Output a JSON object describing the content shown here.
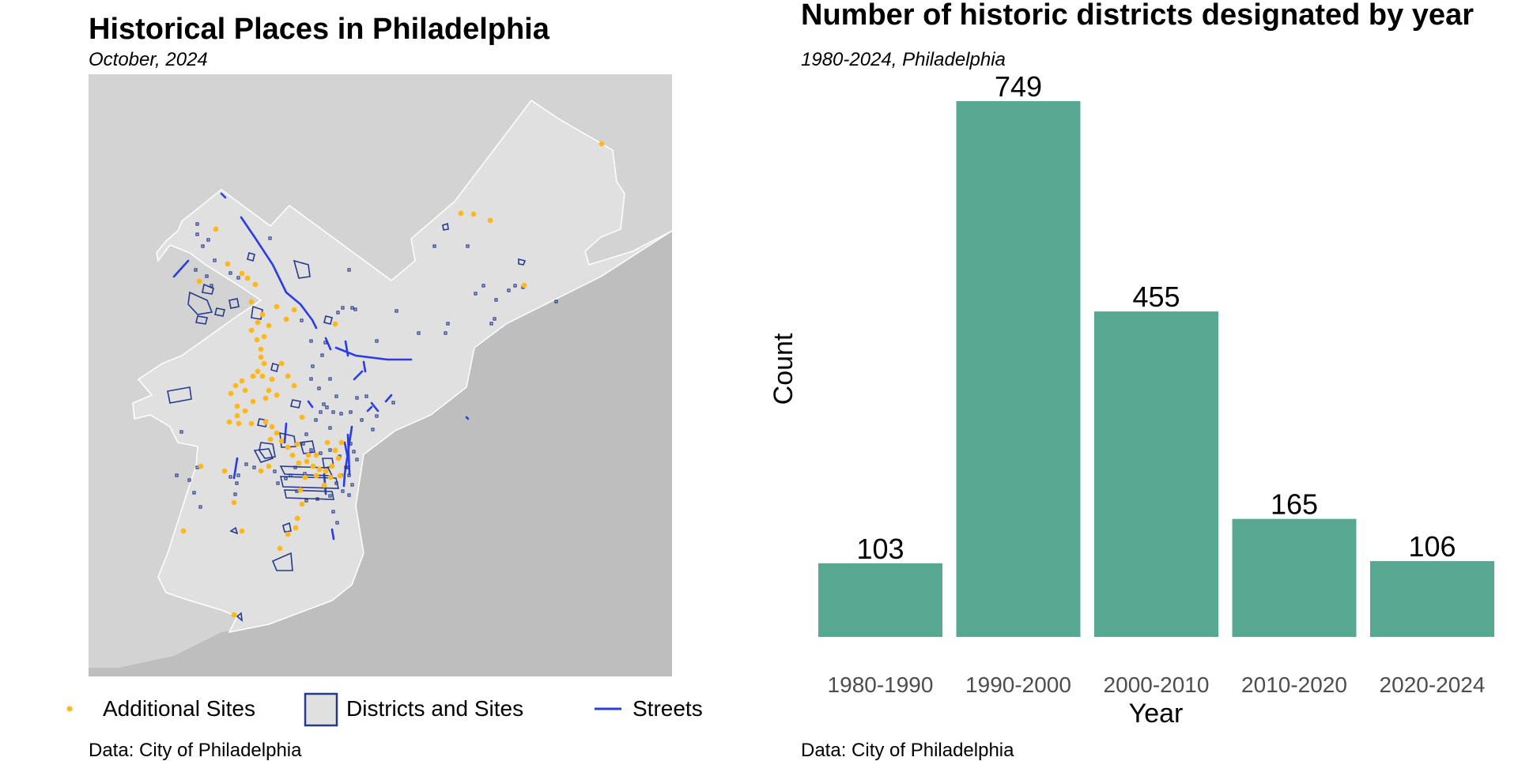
{
  "map": {
    "title": "Historical Places in Philadelphia",
    "subtitle": "October, 2024",
    "caption": "Data: City of Philadelphia",
    "colors": {
      "background": "#d3d3d3",
      "city": "#e0e0e0",
      "water": "#bebebe",
      "additional_sites": "#ffb81c",
      "districts": "#253a8c",
      "streets": "#2b3ce6"
    },
    "legend": [
      {
        "key": "additional",
        "label": "Additional Sites"
      },
      {
        "key": "districts",
        "label": "Districts and Sites"
      },
      {
        "key": "streets",
        "label": "Streets"
      }
    ]
  },
  "chart": {
    "title": "Number of historic districts designated by year",
    "subtitle": "1980-2024, Philadelphia",
    "caption": "Data: City of Philadelphia",
    "bar_color": "#58a891"
  },
  "chart_data": {
    "type": "bar",
    "title": "Number of historic districts designated by year",
    "subtitle": "1980-2024, Philadelphia",
    "xlabel": "Year",
    "ylabel": "Count",
    "categories": [
      "1980-1990",
      "1990-2000",
      "2000-2010",
      "2010-2020",
      "2020-2024"
    ],
    "values": [
      103,
      749,
      455,
      165,
      106
    ],
    "ylim": [
      0,
      749
    ],
    "grid": false,
    "data_labels": true
  }
}
